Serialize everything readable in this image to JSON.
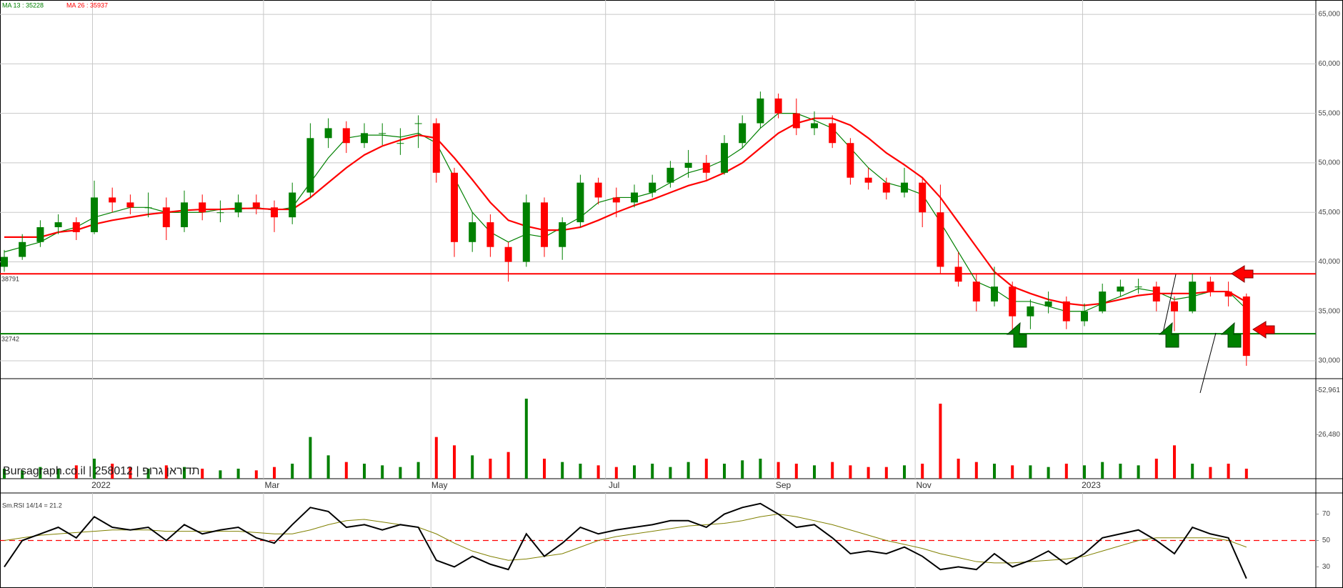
{
  "chart_data": {
    "type": "candlestick",
    "watermark": "Bursagraph.co.il | 258012 | תדיראן גרופ",
    "ylim": [
      28200,
      66450
    ],
    "yticks": [
      {
        "value": 30000,
        "label": "30,000"
      },
      {
        "value": 35000,
        "label": "35,000"
      },
      {
        "value": 40000,
        "label": "40,000"
      },
      {
        "value": 45000,
        "label": "45,000"
      },
      {
        "value": 50000,
        "label": "50,000"
      },
      {
        "value": 55000,
        "label": "55,000"
      },
      {
        "value": 60000,
        "label": "60,000"
      },
      {
        "value": 65000,
        "label": "65,000"
      }
    ],
    "xticks": [
      {
        "value": 4.9,
        "label": "2022"
      },
      {
        "value": 14.4,
        "label": "Mar"
      },
      {
        "value": 23.7,
        "label": "May"
      },
      {
        "value": 33.4,
        "label": "Jul"
      },
      {
        "value": 42.8,
        "label": "Sep"
      },
      {
        "value": 50.6,
        "label": "Nov"
      },
      {
        "value": 59.9,
        "label": "2023"
      }
    ],
    "grid": true,
    "up_color": "#008000",
    "down_color": "#ff0000",
    "open": [
      39500,
      40500,
      42000,
      43500,
      44000,
      43000,
      46500,
      46000,
      45500,
      45500,
      43500,
      46000,
      45000,
      45000,
      46000,
      45500,
      44500,
      47000,
      52500,
      53500,
      52000,
      53000,
      52000,
      54000,
      54000,
      49000,
      42000,
      44000,
      41500,
      40000,
      46000,
      41500,
      44000,
      48000,
      46500,
      46000,
      47000,
      48000,
      49500,
      50000,
      49000,
      52000,
      54000,
      56500,
      55000,
      53500,
      54000,
      52000,
      48500,
      48000,
      47000,
      48000,
      45000,
      39500,
      38000,
      36000,
      37500,
      34500,
      35500,
      36000,
      34000,
      35000,
      37000,
      37500,
      37500,
      36000,
      35000,
      38000,
      37000,
      36500
    ],
    "high": [
      41200,
      42800,
      44200,
      44800,
      44500,
      48200,
      47500,
      46800,
      47000,
      46500,
      47200,
      46800,
      46200,
      46800,
      46800,
      46200,
      48000,
      54000,
      54500,
      54200,
      54000,
      54000,
      53500,
      54800,
      54500,
      49500,
      45000,
      44800,
      42000,
      46800,
      46500,
      44500,
      48800,
      48500,
      47500,
      47800,
      48800,
      50200,
      51300,
      50800,
      52800,
      54800,
      57200,
      57000,
      56500,
      55200,
      54800,
      52500,
      49500,
      48500,
      49500,
      48500,
      47800,
      41000,
      38800,
      39500,
      38000,
      36200,
      37000,
      36500,
      35800,
      37800,
      38200,
      38300,
      38000,
      36500,
      38800,
      38500,
      38000,
      36800
    ],
    "low": [
      39000,
      40200,
      41500,
      42800,
      42200,
      42800,
      45000,
      44800,
      44500,
      42200,
      43000,
      44200,
      44000,
      44500,
      44800,
      43000,
      43800,
      46500,
      51500,
      51000,
      51500,
      51800,
      50800,
      51500,
      48000,
      40500,
      41000,
      40500,
      38000,
      39500,
      40500,
      40200,
      43500,
      45800,
      44500,
      45500,
      46500,
      47500,
      48500,
      48300,
      48800,
      51500,
      53500,
      54500,
      52800,
      52800,
      51500,
      47800,
      47300,
      46300,
      46500,
      43500,
      38800,
      37500,
      35000,
      35500,
      33000,
      33200,
      34800,
      33200,
      33500,
      34800,
      36500,
      36800,
      35000,
      33000,
      34800,
      36500,
      35500,
      29500
    ],
    "close": [
      40500,
      42000,
      43500,
      44000,
      43000,
      46500,
      46000,
      45500,
      45500,
      43500,
      46000,
      45000,
      45000,
      46000,
      45500,
      44500,
      47000,
      52500,
      53500,
      52000,
      53000,
      53000,
      52000,
      54000,
      49000,
      42000,
      44000,
      41500,
      40000,
      46000,
      41500,
      44000,
      48000,
      46500,
      46000,
      47000,
      48000,
      49500,
      50000,
      49000,
      52000,
      54000,
      56500,
      55000,
      53500,
      54000,
      52000,
      48500,
      48000,
      47000,
      48000,
      45000,
      39500,
      38000,
      36000,
      37500,
      34500,
      35500,
      36000,
      34000,
      35000,
      37000,
      37500,
      37500,
      36000,
      35000,
      38000,
      37000,
      36500,
      30500
    ],
    "ma_series": [
      {
        "name": "MA 13 : 35228",
        "color": "#008000",
        "values": [
          41000,
          41500,
          42000,
          43000,
          43500,
          44500,
          45000,
          45500,
          45500,
          45000,
          45000,
          45000,
          45300,
          45300,
          45500,
          45200,
          45500,
          48000,
          50500,
          52500,
          52800,
          52800,
          52600,
          53000,
          52000,
          48500,
          45000,
          43000,
          42000,
          42800,
          42500,
          43500,
          44500,
          46000,
          46500,
          46500,
          47000,
          48000,
          49000,
          49500,
          50300,
          51500,
          53500,
          55000,
          55000,
          54300,
          53500,
          51500,
          49500,
          48000,
          47500,
          46800,
          44000,
          41000,
          38000,
          37200,
          36000,
          36000,
          35500,
          35000,
          35000,
          35800,
          36500,
          37300,
          37000,
          36200,
          36500,
          37000,
          37000,
          35228
        ]
      },
      {
        "name": "MA 26 : 35937",
        "color": "#ff0000",
        "values": [
          42500,
          42500,
          42500,
          43000,
          43200,
          43800,
          44200,
          44500,
          44800,
          45000,
          45200,
          45300,
          45300,
          45400,
          45400,
          45300,
          45300,
          46500,
          48000,
          49500,
          50800,
          51700,
          52300,
          52800,
          52500,
          50500,
          48300,
          46000,
          44200,
          43600,
          43200,
          43200,
          43500,
          44200,
          45000,
          45700,
          46300,
          47000,
          47700,
          48200,
          49000,
          50000,
          51500,
          53000,
          54000,
          54500,
          54500,
          53800,
          52500,
          51000,
          49800,
          48500,
          46500,
          44000,
          41500,
          39000,
          37500,
          36800,
          36200,
          35800,
          35600,
          35800,
          36200,
          36600,
          36800,
          36800,
          36800,
          37000,
          37000,
          35937
        ]
      }
    ],
    "levels": [
      38791,
      32742
    ],
    "level_colors": [
      "#ff0000",
      "#008000"
    ],
    "volume": {
      "ylim": [
        0,
        60000
      ],
      "yticks": [
        {
          "value": 26480,
          "label": "26,480"
        },
        {
          "value": 52961,
          "label": "52,961"
        }
      ],
      "values": [
        6000,
        5000,
        7000,
        6000,
        8000,
        12000,
        9000,
        7000,
        6000,
        8000,
        7000,
        6000,
        5000,
        6000,
        5000,
        7000,
        9000,
        25000,
        14000,
        10000,
        9000,
        8000,
        7000,
        10000,
        25000,
        20000,
        14000,
        12000,
        16000,
        48000,
        12000,
        10000,
        9000,
        8000,
        7000,
        8000,
        9000,
        7000,
        10000,
        12000,
        9000,
        11000,
        12000,
        10000,
        9000,
        8000,
        10000,
        8000,
        7000,
        7000,
        8000,
        9000,
        45000,
        12000,
        10000,
        9000,
        8000,
        8000,
        7000,
        9000,
        8000,
        10000,
        9000,
        8000,
        12000,
        20000,
        9000,
        7000,
        9000,
        6000
      ]
    },
    "rsi": {
      "label": "Sm.RSI 14/14 = 21.2",
      "ylim": [
        14,
        86
      ],
      "yticks": [
        30,
        50,
        70
      ],
      "ref_line": 50,
      "color": "#000000",
      "signal_color": "#808000",
      "values": [
        30,
        50,
        55,
        60,
        52,
        68,
        60,
        58,
        60,
        50,
        62,
        55,
        58,
        60,
        52,
        48,
        62,
        75,
        72,
        60,
        62,
        58,
        62,
        60,
        35,
        30,
        38,
        32,
        28,
        55,
        38,
        48,
        60,
        55,
        58,
        60,
        62,
        65,
        65,
        60,
        70,
        75,
        78,
        70,
        60,
        62,
        52,
        40,
        42,
        40,
        45,
        38,
        28,
        30,
        28,
        40,
        30,
        35,
        42,
        32,
        40,
        52,
        55,
        58,
        50,
        40,
        60,
        55,
        52,
        21.2
      ],
      "signal": [
        50,
        52,
        54,
        55,
        56,
        57,
        58,
        58,
        58,
        57,
        57,
        57,
        57,
        57,
        56,
        55,
        55,
        58,
        62,
        65,
        66,
        64,
        62,
        60,
        55,
        48,
        42,
        38,
        35,
        36,
        38,
        40,
        45,
        50,
        53,
        55,
        57,
        59,
        61,
        62,
        63,
        65,
        68,
        70,
        68,
        65,
        62,
        58,
        54,
        50,
        47,
        44,
        40,
        37,
        34,
        33,
        33,
        34,
        35,
        36,
        38,
        42,
        46,
        50,
        52,
        52,
        52,
        52,
        50,
        45
      ]
    }
  }
}
